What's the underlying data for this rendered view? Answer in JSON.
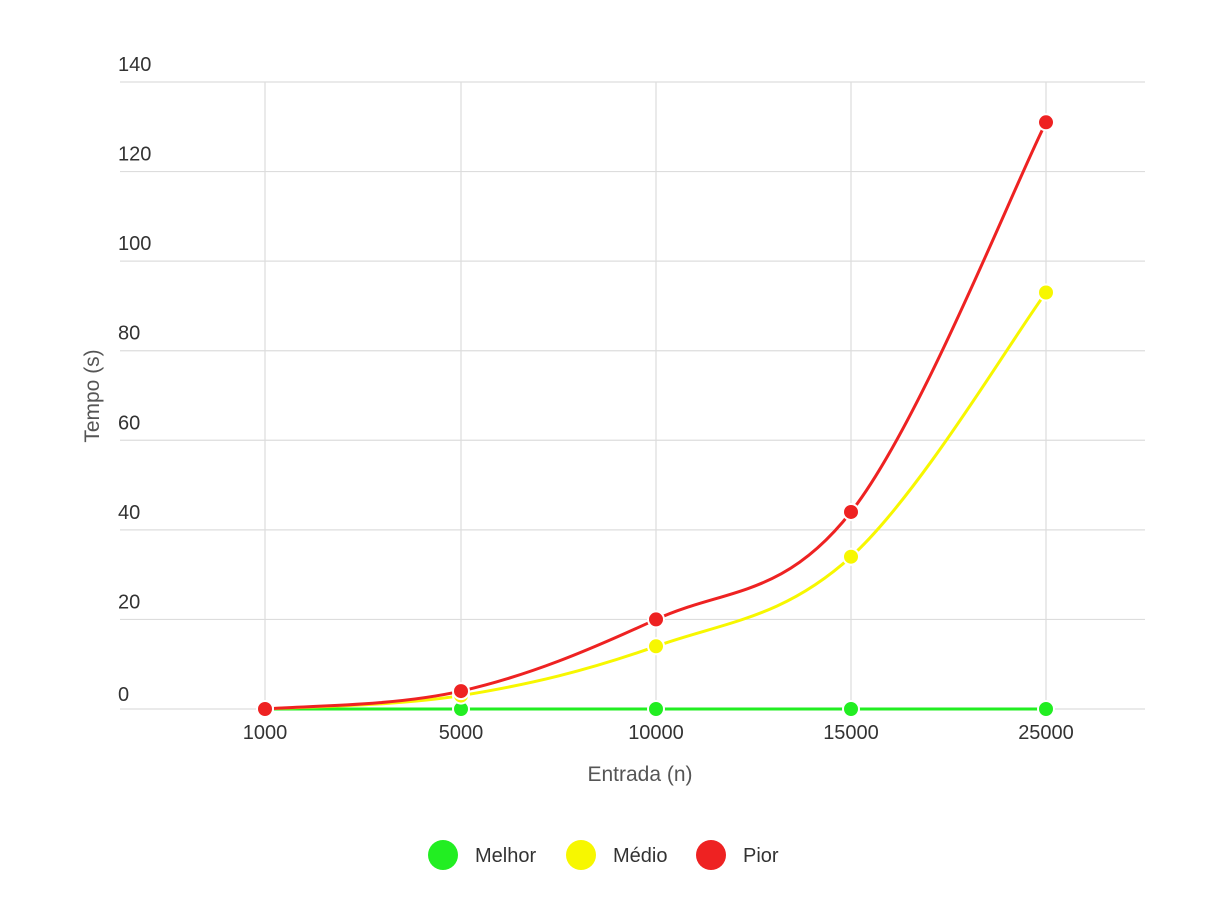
{
  "chart_data": {
    "type": "line",
    "x_label": "Entrada (n)",
    "y_label": "Tempo (s)",
    "categories": [
      "1000",
      "5000",
      "10000",
      "15000",
      "25000"
    ],
    "y_ticks": [
      0,
      20,
      40,
      60,
      80,
      100,
      120,
      140
    ],
    "ylim": [
      0,
      140
    ],
    "grid": true,
    "legend_position": "bottom",
    "series": [
      {
        "name": "Melhor",
        "color": "#22ee22",
        "values": [
          0,
          0,
          0,
          0,
          0
        ]
      },
      {
        "name": "Médio",
        "color": "#f7f700",
        "values": [
          0,
          3,
          14,
          34,
          93
        ]
      },
      {
        "name": "Pior",
        "color": "#ee2222",
        "values": [
          0,
          4,
          20,
          44,
          131
        ]
      }
    ]
  }
}
